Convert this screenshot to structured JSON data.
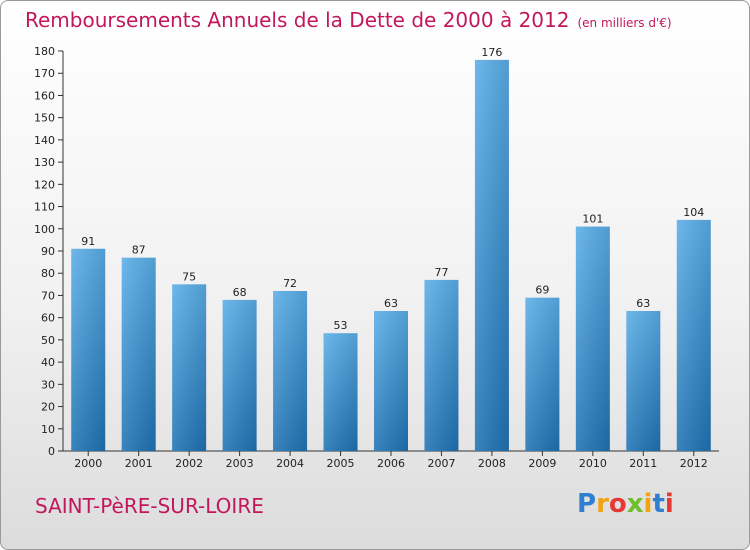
{
  "header": {
    "title": "Remboursements Annuels de la Dette de 2000 à 2012",
    "unit": "(en milliers d'€)"
  },
  "footer": {
    "commune": "SAINT-PèRE-SUR-LOIRE",
    "logo": "Proxiti"
  },
  "colors": {
    "title": "#c2185b",
    "bar_top": "#5aaee8",
    "bar_bottom": "#1f73b4"
  },
  "chart_data": {
    "type": "bar",
    "title": "Remboursements Annuels de la Dette de 2000 à 2012",
    "xlabel": "",
    "ylabel": "",
    "categories": [
      "2000",
      "2001",
      "2002",
      "2003",
      "2004",
      "2005",
      "2006",
      "2007",
      "2008",
      "2009",
      "2010",
      "2011",
      "2012"
    ],
    "values": [
      91,
      87,
      75,
      68,
      72,
      53,
      63,
      77,
      176,
      69,
      101,
      63,
      104
    ],
    "ylim": [
      0,
      180
    ],
    "yticks": [
      0,
      10,
      20,
      30,
      40,
      50,
      60,
      70,
      80,
      90,
      100,
      110,
      120,
      130,
      140,
      150,
      160,
      170,
      180
    ],
    "grid": false,
    "legend": "none"
  }
}
